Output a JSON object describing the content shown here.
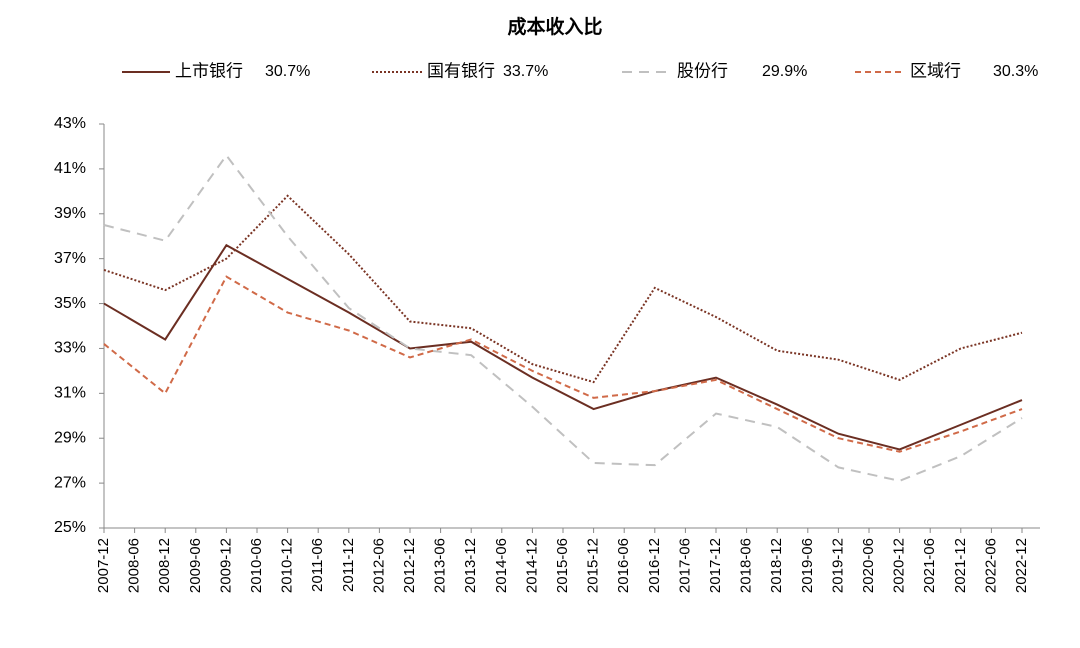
{
  "chart_data": {
    "type": "line",
    "title": "成本收入比",
    "categories": [
      "2007-12",
      "2008-06",
      "2008-12",
      "2009-06",
      "2009-12",
      "2010-06",
      "2010-12",
      "2011-06",
      "2011-12",
      "2012-06",
      "2012-12",
      "2013-06",
      "2013-12",
      "2014-06",
      "2014-12",
      "2015-06",
      "2015-12",
      "2016-06",
      "2016-12",
      "2017-06",
      "2017-12",
      "2018-06",
      "2018-12",
      "2019-06",
      "2019-12",
      "2020-06",
      "2020-12",
      "2021-06",
      "2021-12",
      "2022-06",
      "2022-12"
    ],
    "span_gaps": true,
    "series": [
      {
        "name": "上市银行",
        "color": "#6b2e22",
        "dash": "solid",
        "values": [
          35.0,
          null,
          33.4,
          null,
          37.6,
          null,
          36.1,
          null,
          34.6,
          null,
          33.0,
          null,
          33.3,
          null,
          31.7,
          null,
          30.3,
          null,
          31.1,
          null,
          31.7,
          null,
          30.5,
          null,
          29.2,
          null,
          28.5,
          null,
          29.6,
          null,
          30.7
        ],
        "value_labels": [
          null,
          null,
          null,
          null,
          null,
          null,
          null,
          null,
          null,
          null,
          null,
          null,
          null,
          null,
          null,
          null,
          null,
          null,
          null,
          null,
          null,
          null,
          null,
          null,
          null,
          null,
          null,
          null,
          null,
          null,
          "30.7%"
        ]
      },
      {
        "name": "国有银行",
        "color": "#7a3424",
        "dash": "dotted",
        "values": [
          36.5,
          null,
          35.6,
          null,
          37.0,
          null,
          39.8,
          null,
          37.2,
          null,
          34.2,
          null,
          33.9,
          null,
          32.3,
          null,
          31.5,
          null,
          35.7,
          null,
          34.4,
          null,
          32.9,
          null,
          32.5,
          null,
          31.6,
          null,
          33.0,
          null,
          33.7
        ],
        "value_labels": [
          null,
          null,
          null,
          null,
          null,
          null,
          null,
          null,
          null,
          null,
          null,
          null,
          null,
          null,
          null,
          null,
          null,
          null,
          null,
          null,
          null,
          null,
          null,
          null,
          null,
          null,
          null,
          null,
          null,
          null,
          "33.7%"
        ]
      },
      {
        "name": "股份行",
        "color": "#c0c0c0",
        "dash": "dashed",
        "values": [
          38.5,
          null,
          37.8,
          null,
          41.6,
          null,
          38.0,
          null,
          34.8,
          null,
          33.0,
          null,
          32.7,
          null,
          30.4,
          null,
          27.9,
          null,
          27.8,
          null,
          30.1,
          null,
          29.5,
          null,
          27.7,
          null,
          27.1,
          null,
          28.2,
          null,
          29.9
        ],
        "value_labels": [
          null,
          null,
          null,
          null,
          null,
          null,
          null,
          null,
          null,
          null,
          null,
          null,
          null,
          null,
          null,
          null,
          null,
          null,
          null,
          null,
          null,
          null,
          null,
          null,
          null,
          null,
          null,
          null,
          null,
          null,
          "29.9%"
        ]
      },
      {
        "name": "区域行",
        "color": "#d06a48",
        "dash": "short-dashed",
        "values": [
          33.2,
          null,
          31.0,
          null,
          36.2,
          null,
          34.6,
          null,
          33.8,
          null,
          32.6,
          null,
          33.4,
          null,
          32.0,
          null,
          30.8,
          null,
          31.1,
          null,
          31.6,
          null,
          30.3,
          null,
          29.0,
          null,
          28.4,
          null,
          29.3,
          null,
          30.3
        ],
        "value_labels": [
          null,
          null,
          null,
          null,
          null,
          null,
          null,
          null,
          null,
          null,
          null,
          null,
          null,
          null,
          null,
          null,
          null,
          null,
          null,
          null,
          null,
          null,
          null,
          null,
          null,
          null,
          null,
          null,
          null,
          null,
          "30.3%"
        ]
      }
    ],
    "ylim": [
      25,
      43
    ],
    "yticks": [
      {
        "value": 25,
        "label": "25%"
      },
      {
        "value": 27,
        "label": "27%"
      },
      {
        "value": 29,
        "label": "29%"
      },
      {
        "value": 31,
        "label": "31%"
      },
      {
        "value": 33,
        "label": "33%"
      },
      {
        "value": 35,
        "label": "35%"
      },
      {
        "value": 37,
        "label": "37%"
      },
      {
        "value": 39,
        "label": "39%"
      },
      {
        "value": 41,
        "label": "41%"
      },
      {
        "value": 43,
        "label": "43%"
      }
    ],
    "grid": false,
    "legend": "top"
  }
}
